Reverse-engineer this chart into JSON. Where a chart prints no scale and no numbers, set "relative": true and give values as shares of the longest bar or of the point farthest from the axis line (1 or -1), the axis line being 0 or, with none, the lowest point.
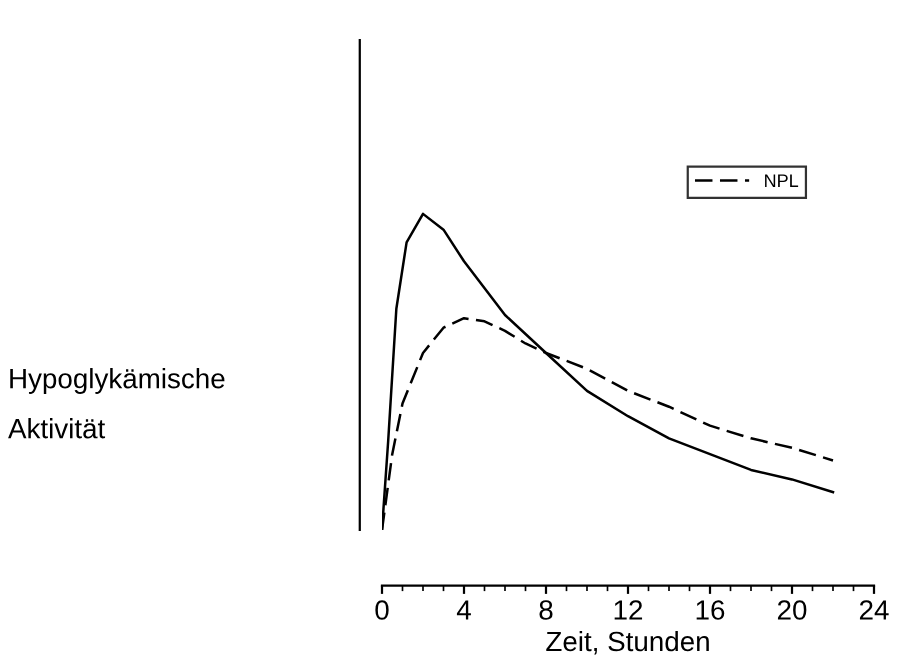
{
  "chart_data": {
    "type": "line",
    "relative": true,
    "xlabel": "Zeit, Stunden",
    "annotations": [
      "Hypoglykämische\nAktivität"
    ],
    "xlim": [
      0,
      24
    ],
    "xticks": [
      0,
      4,
      8,
      12,
      16,
      20,
      24
    ],
    "legend": "top right",
    "grid": false,
    "marker": "none",
    "series": [
      {
        "color": "#000000",
        "line_style": "solid",
        "x": [
          0,
          0.3,
          0.7,
          1.2,
          2,
          3,
          4,
          6,
          8,
          10,
          12,
          14,
          16,
          18,
          20,
          22
        ],
        "values": [
          0,
          0.28,
          0.7,
          0.91,
          1,
          0.95,
          0.85,
          0.68,
          0.56,
          0.44,
          0.36,
          0.29,
          0.24,
          0.19,
          0.16,
          0.12
        ]
      },
      {
        "name": "NPL",
        "color": "#000000",
        "line_style": "dashed",
        "x": [
          0,
          0.5,
          1,
          2,
          3,
          4,
          5,
          6,
          7,
          8,
          10,
          12,
          14,
          16,
          18,
          20,
          22
        ],
        "values": [
          0,
          0.24,
          0.4,
          0.56,
          0.64,
          0.67,
          0.66,
          0.63,
          0.59,
          0.56,
          0.51,
          0.44,
          0.39,
          0.33,
          0.29,
          0.26,
          0.22
        ]
      }
    ]
  }
}
